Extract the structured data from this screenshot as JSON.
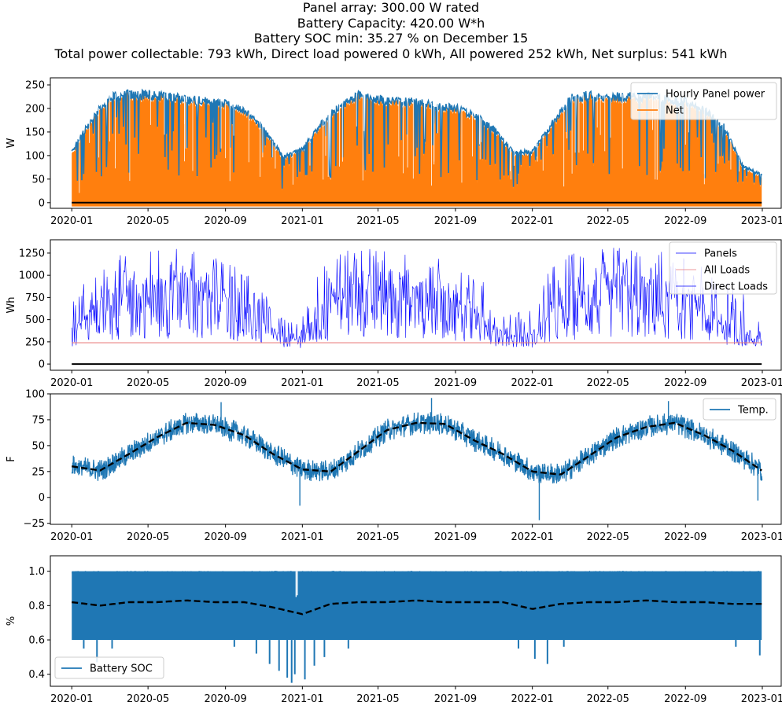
{
  "figure": {
    "title_lines": [
      "Panel array: 300.00 W rated",
      "Battery Capacity: 420.00 W*h",
      "Battery SOC min: 35.27 % on December 15",
      "Total power collectable: 793 kWh, Direct load powered  0 kWh, All powered 252 kWh, Net surplus: 541 kWh"
    ],
    "date_ticks": [
      "2020-01",
      "2020-05",
      "2020-09",
      "2021-01",
      "2021-05",
      "2021-09",
      "2022-01",
      "2022-05",
      "2022-09",
      "2023-01"
    ]
  },
  "chart_data": [
    {
      "type": "line",
      "panel": "hourly_power",
      "ylabel": "W",
      "ylim": [
        -12,
        265
      ],
      "yticks": [
        "0",
        "50",
        "100",
        "150",
        "200",
        "250"
      ],
      "yticks_values": [
        0,
        50,
        100,
        150,
        200,
        250
      ],
      "xlim": [
        "2019-11-28",
        "2023-01-31"
      ],
      "legend_position": "top-right",
      "series": [
        {
          "name": "Hourly Panel power",
          "color": "#1f77b4",
          "monthly_envelope_dates": [
            "2020-01-01",
            "2020-02-01",
            "2020-03-01",
            "2020-04-01",
            "2020-05-01",
            "2020-06-01",
            "2020-07-01",
            "2020-08-01",
            "2020-09-01",
            "2020-10-01",
            "2020-11-01",
            "2020-12-01",
            "2021-01-01",
            "2021-02-01",
            "2021-03-01",
            "2021-04-01",
            "2021-05-01",
            "2021-06-01",
            "2021-07-01",
            "2021-08-01",
            "2021-09-01",
            "2021-10-01",
            "2021-11-01",
            "2021-12-01",
            "2022-01-01",
            "2022-02-01",
            "2022-03-01",
            "2022-04-01",
            "2022-05-01",
            "2022-06-01",
            "2022-07-01",
            "2022-08-01",
            "2022-09-01",
            "2022-10-01",
            "2022-11-01",
            "2022-12-01",
            "2022-12-31"
          ],
          "monthly_envelope_values": [
            110,
            180,
            230,
            235,
            235,
            230,
            225,
            220,
            215,
            200,
            160,
            100,
            115,
            175,
            210,
            235,
            225,
            220,
            220,
            210,
            205,
            190,
            160,
            110,
            110,
            170,
            225,
            235,
            230,
            230,
            230,
            225,
            220,
            200,
            165,
            80,
            60
          ]
        },
        {
          "name": "Net",
          "color": "#ff7f0e",
          "baseline_min": -8
        }
      ],
      "zero_line": {
        "value": 0,
        "color": "#000000"
      }
    },
    {
      "type": "line",
      "panel": "daily_energy",
      "ylabel": "Wh",
      "ylim": [
        -70,
        1400
      ],
      "yticks": [
        "0",
        "250",
        "500",
        "750",
        "1000",
        "1250"
      ],
      "yticks_values": [
        0,
        250,
        500,
        750,
        1000,
        1250
      ],
      "legend_position": "top-right",
      "series": [
        {
          "name": "Panels",
          "color": "#0000ff",
          "monthly_dates": [
            "2020-01-01",
            "2020-02-01",
            "2020-03-01",
            "2020-04-01",
            "2020-05-01",
            "2020-06-01",
            "2020-07-01",
            "2020-08-01",
            "2020-09-01",
            "2020-10-01",
            "2020-11-01",
            "2020-12-01",
            "2021-01-01",
            "2021-02-01",
            "2021-03-01",
            "2021-04-01",
            "2021-05-01",
            "2021-06-01",
            "2021-07-01",
            "2021-08-01",
            "2021-09-01",
            "2021-10-01",
            "2021-11-01",
            "2021-12-01",
            "2022-01-01",
            "2022-02-01",
            "2022-03-01",
            "2022-04-01",
            "2022-05-01",
            "2022-06-01",
            "2022-07-01",
            "2022-08-01",
            "2022-09-01",
            "2022-10-01",
            "2022-11-01",
            "2022-12-01",
            "2022-12-31"
          ],
          "monthly_mean": [
            380,
            550,
            700,
            780,
            820,
            830,
            810,
            780,
            730,
            600,
            450,
            300,
            300,
            520,
            780,
            850,
            830,
            820,
            800,
            780,
            720,
            560,
            420,
            300,
            320,
            560,
            720,
            820,
            840,
            830,
            800,
            780,
            720,
            600,
            480,
            360,
            300
          ],
          "monthly_max": [
            900,
            1150,
            1200,
            1250,
            1300,
            1320,
            1300,
            1250,
            1200,
            1050,
            800,
            500,
            600,
            1150,
            1300,
            1320,
            1300,
            1280,
            1250,
            1200,
            1150,
            1000,
            850,
            600,
            700,
            1100,
            1250,
            1300,
            1320,
            1320,
            1300,
            1280,
            1200,
            1100,
            950,
            800,
            700
          ],
          "min_value": 150
        },
        {
          "name": "All Loads",
          "color": "#e8797a",
          "value": 240
        },
        {
          "name": "Direct Loads",
          "color": "#0000ff",
          "value": 0
        }
      ],
      "zero_line": {
        "value": 0,
        "color": "#000000"
      }
    },
    {
      "type": "line",
      "panel": "temperature",
      "ylabel": "F",
      "ylim": [
        -26,
        100
      ],
      "yticks": [
        "−25",
        "0",
        "25",
        "50",
        "75",
        "100"
      ],
      "yticks_values": [
        -25,
        0,
        25,
        50,
        75,
        100
      ],
      "legend_position": "top-right",
      "series": [
        {
          "name": "Temp.",
          "color": "#1f77b4",
          "spread": 22,
          "min_marks": [
            {
              "x": "2022-01-12",
              "y": -22
            },
            {
              "x": "2020-12-28",
              "y": -8
            },
            {
              "x": "2022-12-25",
              "y": -3
            }
          ],
          "max_marks": [
            {
              "x": "2021-07-25",
              "y": 96
            },
            {
              "x": "2022-08-05",
              "y": 93
            },
            {
              "x": "2020-08-25",
              "y": 92
            }
          ]
        },
        {
          "name": "",
          "color": "#000000",
          "dashed": true,
          "dates": [
            "2020-01-01",
            "2020-02-15",
            "2020-04-01",
            "2020-05-15",
            "2020-07-01",
            "2020-08-15",
            "2020-10-01",
            "2020-11-15",
            "2021-01-01",
            "2021-02-15",
            "2021-04-01",
            "2021-05-15",
            "2021-07-01",
            "2021-08-15",
            "2021-10-01",
            "2021-11-15",
            "2022-01-01",
            "2022-02-15",
            "2022-04-01",
            "2022-05-15",
            "2022-07-01",
            "2022-08-15",
            "2022-10-01",
            "2022-11-15",
            "2022-12-31"
          ],
          "values": [
            30,
            26,
            42,
            58,
            72,
            70,
            60,
            42,
            27,
            25,
            45,
            65,
            72,
            71,
            55,
            42,
            25,
            22,
            40,
            58,
            68,
            72,
            60,
            45,
            26
          ]
        }
      ]
    },
    {
      "type": "area",
      "panel": "battery_soc",
      "ylabel": "%",
      "ylim": [
        0.33,
        1.09
      ],
      "yticks": [
        "0.4",
        "0.6",
        "0.8",
        "1.0"
      ],
      "yticks_values": [
        0.4,
        0.6,
        0.8,
        1.0
      ],
      "legend_position": "bottom-left",
      "series": [
        {
          "name": "Battery SOC",
          "color": "#1f77b4",
          "band": [
            0.6,
            1.0
          ],
          "dips": [
            {
              "x": "2020-01-20",
              "y": 0.55
            },
            {
              "x": "2020-02-10",
              "y": 0.47
            },
            {
              "x": "2020-03-05",
              "y": 0.55
            },
            {
              "x": "2020-09-15",
              "y": 0.56
            },
            {
              "x": "2020-10-20",
              "y": 0.52
            },
            {
              "x": "2020-11-10",
              "y": 0.46
            },
            {
              "x": "2020-11-25",
              "y": 0.42
            },
            {
              "x": "2020-12-08",
              "y": 0.38
            },
            {
              "x": "2020-12-15",
              "y": 0.35
            },
            {
              "x": "2020-12-20",
              "y": 0.4
            },
            {
              "x": "2021-01-05",
              "y": 0.37
            },
            {
              "x": "2021-01-20",
              "y": 0.45
            },
            {
              "x": "2021-02-05",
              "y": 0.5
            },
            {
              "x": "2021-03-15",
              "y": 0.55
            },
            {
              "x": "2021-12-10",
              "y": 0.55
            },
            {
              "x": "2022-01-05",
              "y": 0.49
            },
            {
              "x": "2022-01-25",
              "y": 0.46
            },
            {
              "x": "2022-02-20",
              "y": 0.56
            },
            {
              "x": "2022-11-20",
              "y": 0.56
            },
            {
              "x": "2022-12-28",
              "y": 0.51
            }
          ],
          "spikes": [
            {
              "x": "2020-12-20",
              "y": 1.0
            },
            {
              "x": "2020-12-22",
              "y": 0.85
            },
            {
              "x": "2020-12-24",
              "y": 0.86
            }
          ]
        },
        {
          "name": "",
          "color": "#000000",
          "dashed": true,
          "dates": [
            "2020-01-01",
            "2020-02-15",
            "2020-04-01",
            "2020-05-15",
            "2020-07-01",
            "2020-08-15",
            "2020-10-01",
            "2020-11-15",
            "2021-01-01",
            "2021-02-15",
            "2021-04-01",
            "2021-05-15",
            "2021-07-01",
            "2021-08-15",
            "2021-10-01",
            "2021-11-15",
            "2022-01-01",
            "2022-02-15",
            "2022-04-01",
            "2022-05-15",
            "2022-07-01",
            "2022-08-15",
            "2022-10-01",
            "2022-11-15",
            "2022-12-31"
          ],
          "values": [
            0.82,
            0.8,
            0.82,
            0.82,
            0.83,
            0.82,
            0.82,
            0.79,
            0.75,
            0.81,
            0.82,
            0.82,
            0.83,
            0.82,
            0.82,
            0.82,
            0.78,
            0.81,
            0.82,
            0.82,
            0.83,
            0.82,
            0.82,
            0.81,
            0.81
          ]
        }
      ]
    }
  ]
}
